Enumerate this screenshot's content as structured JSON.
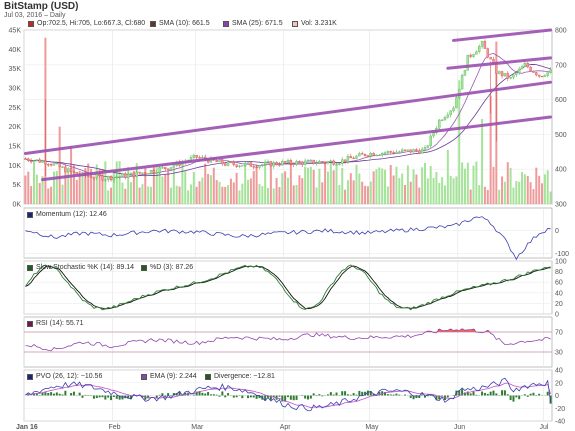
{
  "header": {
    "title": "BitStamp (USD)",
    "subtitle": "Jul 03, 2016  –  Daily"
  },
  "legend": {
    "ohlc": "Op:702.5, Hi:705, Lo:667.3, Cl:680",
    "sma10": "SMA (10): 661.5",
    "sma25": "SMA (25): 671.5",
    "vol": "Vol: 3.231K",
    "momentum": "Momentum (12): 12.46",
    "stoch_k": "Slow Stochastic %K (14): 89.14",
    "stoch_d": "%D (3): 87.26",
    "rsi": "RSI (14): 55.71",
    "pvo": "PVO (26, 12): −10.56",
    "ema": "EMA (9): 2.244",
    "divergence": "Divergence: −12.81"
  },
  "colors": {
    "up": "#a6e39a",
    "down": "#ef9a9a",
    "sma10": "#9b59b6",
    "sma25": "#6a3d9a",
    "trend": "#9b4fb0",
    "momentum": "#3b3fb0",
    "stoch_k": "#2e7d32",
    "stoch_d": "#111111",
    "rsi": "#8e44ad",
    "rsi_fill": "#f06060",
    "pvo_line": "#3b3fb0",
    "ema_line": "#c04fc8",
    "div_bar": "#2e7d32",
    "swatch_ohlc": "#c62828",
    "swatch_sma10": "#5b3a29",
    "swatch_sma25": "#8e44ad",
    "swatch_vol": "#f4c2c2",
    "swatch_momentum": "#1a237e",
    "swatch_stoch": "#1b5e20",
    "swatch_rsi": "#6a1b4d",
    "swatch_pvo": "#1a237e",
    "swatch_ema": "#8e44ad",
    "swatch_div": "#1b5e20"
  },
  "chart_data": {
    "type": "candlestick",
    "title": "BitStamp (USD)",
    "x_labels": [
      "Jan 16",
      "Feb",
      "Mar",
      "Apr",
      "May",
      "Jun",
      "Jul"
    ],
    "days": 185,
    "month_starts": [
      0,
      31,
      60,
      91,
      121,
      152,
      182
    ],
    "price": {
      "ylim": [
        300,
        800
      ],
      "right_ticks": [
        300,
        400,
        500,
        600,
        700,
        800
      ],
      "anchors": [
        [
          0,
          430
        ],
        [
          8,
          420
        ],
        [
          18,
          385
        ],
        [
          28,
          375
        ],
        [
          38,
          385
        ],
        [
          50,
          405
        ],
        [
          60,
          435
        ],
        [
          70,
          415
        ],
        [
          80,
          412
        ],
        [
          90,
          418
        ],
        [
          100,
          420
        ],
        [
          110,
          422
        ],
        [
          120,
          445
        ],
        [
          130,
          450
        ],
        [
          140,
          455
        ],
        [
          145,
          540
        ],
        [
          150,
          580
        ],
        [
          155,
          720
        ],
        [
          160,
          760
        ],
        [
          165,
          680
        ],
        [
          170,
          660
        ],
        [
          175,
          700
        ],
        [
          180,
          670
        ],
        [
          184,
          680
        ]
      ],
      "volatility": 8,
      "sma10_last": 661.5,
      "sma25_last": 671.5,
      "trendlines": [
        {
          "x": [
            0,
            184
          ],
          "y": [
            445,
            650
          ]
        },
        {
          "x": [
            6,
            184
          ],
          "y": [
            370,
            550
          ]
        },
        {
          "x": [
            150,
            184
          ],
          "y": [
            770,
            800
          ]
        },
        {
          "x": [
            148,
            184
          ],
          "y": [
            690,
            720
          ]
        }
      ]
    },
    "volume": {
      "ylim": [
        0,
        45000
      ],
      "left_ticks": [
        0,
        5000,
        10000,
        15000,
        20000,
        25000,
        30000,
        35000,
        40000,
        45000
      ],
      "left_tick_labels": [
        "0K",
        "5K",
        "10K",
        "15K",
        "20K",
        "25K",
        "30K",
        "35K",
        "40K",
        "45K"
      ],
      "spikes": [
        [
          7,
          43000
        ],
        [
          12,
          20000
        ],
        [
          16,
          15000
        ],
        [
          148,
          14000
        ],
        [
          152,
          32000
        ],
        [
          160,
          22000
        ],
        [
          163,
          28000
        ],
        [
          165,
          42000
        ]
      ],
      "base": 7000,
      "last": 3231
    },
    "momentum": {
      "ylim": [
        -120,
        100
      ],
      "ticks": [
        0,
        -100
      ],
      "anchors": [
        [
          0,
          5
        ],
        [
          10,
          -30
        ],
        [
          20,
          -10
        ],
        [
          30,
          -20
        ],
        [
          45,
          0
        ],
        [
          60,
          -5
        ],
        [
          75,
          -25
        ],
        [
          90,
          -10
        ],
        [
          105,
          0
        ],
        [
          120,
          -10
        ],
        [
          135,
          5
        ],
        [
          150,
          20
        ],
        [
          158,
          60
        ],
        [
          162,
          50
        ],
        [
          168,
          -40
        ],
        [
          172,
          -120
        ],
        [
          176,
          -60
        ],
        [
          180,
          -10
        ],
        [
          184,
          12.46
        ]
      ]
    },
    "stochastic": {
      "ylim": [
        0,
        100
      ],
      "ticks": [
        0,
        20,
        40,
        60,
        80,
        100
      ],
      "k_last": 89.14,
      "d_last": 87.26
    },
    "rsi": {
      "ylim": [
        0,
        100
      ],
      "ticks": [
        30,
        70
      ],
      "overbought": 70,
      "oversold": 30,
      "anchors": [
        [
          0,
          45
        ],
        [
          10,
          35
        ],
        [
          20,
          50
        ],
        [
          30,
          42
        ],
        [
          45,
          55
        ],
        [
          60,
          48
        ],
        [
          72,
          60
        ],
        [
          90,
          55
        ],
        [
          100,
          65
        ],
        [
          115,
          58
        ],
        [
          125,
          60
        ],
        [
          135,
          62
        ],
        [
          145,
          72
        ],
        [
          150,
          76
        ],
        [
          156,
          74
        ],
        [
          162,
          70
        ],
        [
          168,
          45
        ],
        [
          175,
          52
        ],
        [
          184,
          55.71
        ]
      ]
    },
    "pvo": {
      "ylim": [
        -40,
        40
      ],
      "ticks": [
        40,
        20,
        0,
        -20,
        -40
      ],
      "pvo_last": -10.56,
      "ema_last": 2.244,
      "divergence_last": -12.81
    }
  }
}
